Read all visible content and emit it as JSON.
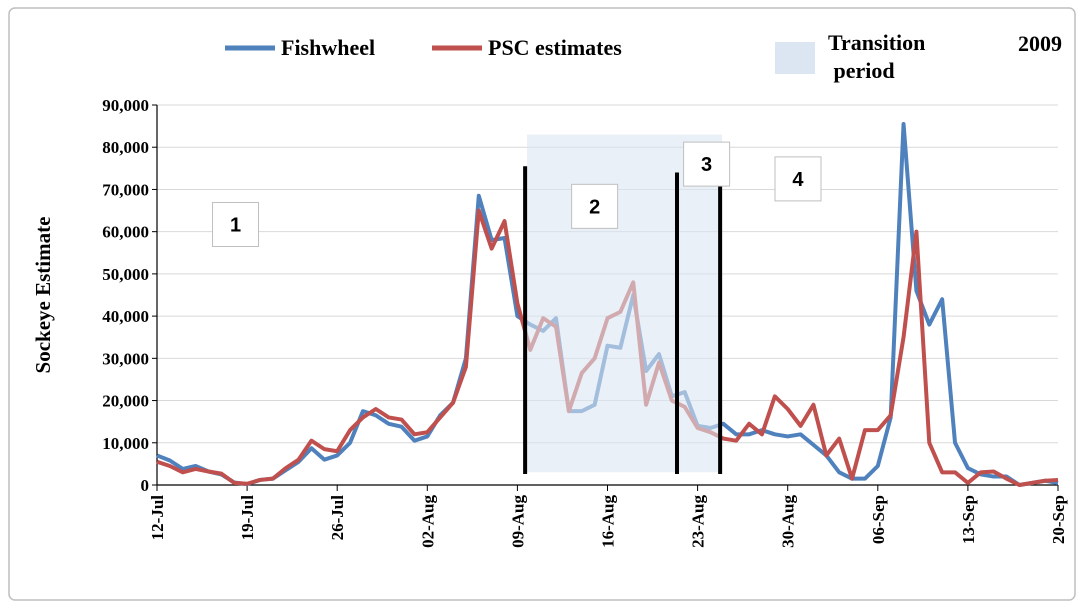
{
  "chart_data": {
    "type": "line",
    "ylabel": "Sockeye Estimate",
    "year_label": "2009",
    "categories": [
      "12-Jul",
      null,
      null,
      null,
      null,
      null,
      null,
      "19-Jul",
      null,
      null,
      null,
      null,
      null,
      null,
      "26-Jul",
      null,
      null,
      null,
      null,
      null,
      null,
      "02-Aug",
      null,
      null,
      null,
      null,
      null,
      null,
      "09-Aug",
      null,
      null,
      null,
      null,
      null,
      null,
      "16-Aug",
      null,
      null,
      null,
      null,
      null,
      null,
      "23-Aug",
      null,
      null,
      null,
      null,
      null,
      null,
      "30-Aug",
      null,
      null,
      null,
      null,
      null,
      null,
      "06-Sep",
      null,
      null,
      null,
      null,
      null,
      null,
      "13-Sep",
      null,
      null,
      null,
      null,
      null,
      null,
      "20-Sep"
    ],
    "series": [
      {
        "name": "Fishwheel",
        "color": "#4f81bd",
        "values": [
          7000,
          5800,
          3800,
          4500,
          3200,
          2500,
          600,
          200,
          1200,
          1500,
          3500,
          5500,
          8700,
          6000,
          7000,
          10000,
          17500,
          16500,
          14500,
          13800,
          10500,
          11500,
          16500,
          19500,
          30000,
          68500,
          58000,
          58500,
          40000,
          38000,
          36500,
          39500,
          17500,
          17500,
          19000,
          33000,
          32500,
          45000,
          27000,
          31000,
          21000,
          22000,
          14000,
          13500,
          14500,
          12000,
          12000,
          13000,
          12000,
          11500,
          12000,
          9500,
          7000,
          3000,
          1500,
          1500,
          4500,
          16000,
          85500,
          46000,
          38000,
          44000,
          10000,
          4000,
          2500,
          2000,
          2000,
          0,
          500,
          1000,
          500
        ]
      },
      {
        "name": "PSC estimates",
        "color": "#c0504d",
        "values": [
          5500,
          4500,
          3000,
          3800,
          3200,
          2700,
          500,
          300,
          1200,
          1500,
          4000,
          6000,
          10500,
          8500,
          8000,
          13000,
          16000,
          18000,
          16000,
          15500,
          12000,
          12500,
          16000,
          19500,
          28000,
          65000,
          56000,
          62500,
          43000,
          32000,
          39500,
          37500,
          17500,
          26500,
          30000,
          39500,
          41000,
          48000,
          19000,
          29000,
          20000,
          18500,
          13500,
          12500,
          11000,
          10500,
          14500,
          12000,
          21000,
          18000,
          14000,
          19000,
          7000,
          11000,
          1500,
          13000,
          13000,
          16500,
          35000,
          60000,
          10000,
          3000,
          3000,
          500,
          3000,
          3200,
          1500,
          0,
          500,
          1000,
          1200
        ]
      }
    ],
    "transition": {
      "name": "Transition period",
      "color": "#dce6f2",
      "x_range": [
        28.75,
        43.9
      ],
      "y_range": [
        3000,
        83000
      ]
    },
    "period_lines": [
      {
        "x": 28.6,
        "y_range": [
          2600,
          75500
        ]
      },
      {
        "x": 40.4,
        "y_range": [
          2600,
          74000
        ]
      },
      {
        "x": 43.75,
        "y_range": [
          2600,
          74000
        ]
      }
    ],
    "annotations": [
      {
        "text": "1",
        "x": 6.1,
        "y": 61700
      },
      {
        "text": "2",
        "x": 34,
        "y": 66000
      },
      {
        "text": "3",
        "x": 42.7,
        "y": 76000
      },
      {
        "text": "4",
        "x": 49.8,
        "y": 72500
      }
    ],
    "ylim": [
      0,
      90000
    ],
    "yticks": [
      0,
      {
        "value": 10000,
        "label": "10,000"
      },
      {
        "value": 20000,
        "label": "20,000"
      },
      {
        "value": 30000,
        "label": "30,000"
      },
      {
        "value": 40000,
        "label": "40,000"
      },
      {
        "value": 50000,
        "label": "50,000"
      },
      {
        "value": 60000,
        "label": "60,000"
      },
      {
        "value": 70000,
        "label": "70,000"
      },
      {
        "value": 80000,
        "label": "80,000"
      },
      {
        "value": 90000,
        "label": "90,000"
      }
    ],
    "grid": true
  }
}
